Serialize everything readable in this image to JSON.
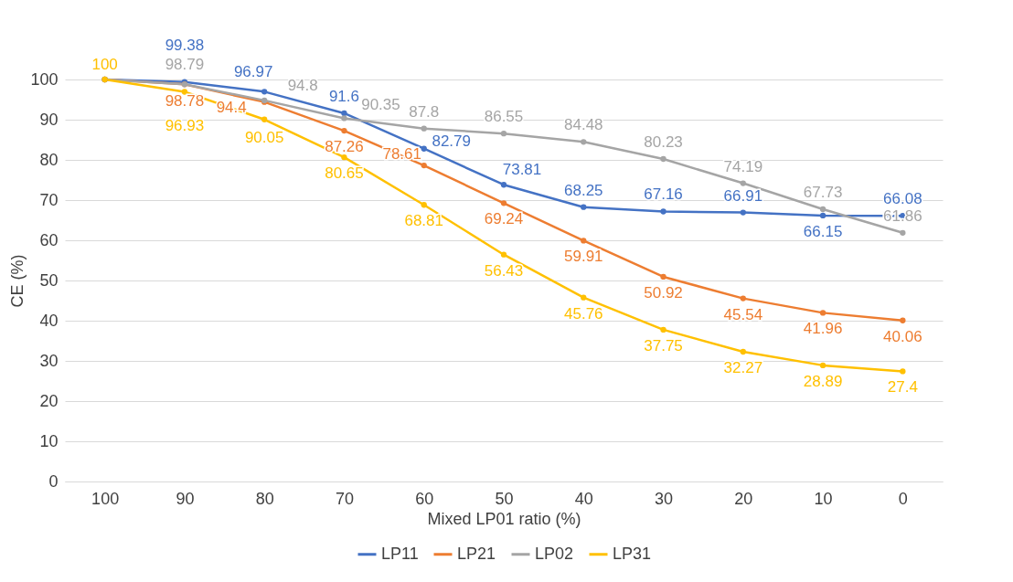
{
  "chart_data": {
    "type": "line",
    "xlabel": "Mixed LP01 ratio (%)",
    "ylabel": "CE (%)",
    "categories": [
      "100",
      "90",
      "80",
      "70",
      "60",
      "50",
      "40",
      "30",
      "20",
      "10",
      "0"
    ],
    "series": [
      {
        "name": "LP11",
        "color": "#4472c4",
        "values": [
          100,
          99.38,
          96.97,
          91.6,
          82.79,
          73.81,
          68.25,
          67.16,
          66.91,
          66.15,
          66.08
        ],
        "value_labels": [
          null,
          "99.38",
          "96.97",
          "91.6",
          "82.79",
          "73.81",
          "68.25",
          "67.16",
          "66.91",
          "66.15",
          "66.08"
        ]
      },
      {
        "name": "LP21",
        "color": "#ed7d31",
        "values": [
          100,
          98.78,
          94.4,
          87.26,
          78.61,
          69.24,
          59.91,
          50.92,
          45.54,
          41.96,
          40.06
        ],
        "value_labels": [
          null,
          "98.78",
          "94.4",
          "87.26",
          "78.61",
          "69.24",
          "59.91",
          "50.92",
          "45.54",
          "41.96",
          "40.06"
        ]
      },
      {
        "name": "LP02",
        "color": "#a5a5a5",
        "values": [
          100,
          98.79,
          94.8,
          90.35,
          87.8,
          86.55,
          84.48,
          80.23,
          74.19,
          67.73,
          61.86
        ],
        "value_labels": [
          null,
          "98.79",
          "94.8",
          "90.35",
          "87.8",
          "86.55",
          "84.48",
          "80.23",
          "74.19",
          "67.73",
          "61.86"
        ]
      },
      {
        "name": "LP31",
        "color": "#ffc000",
        "values": [
          100,
          96.93,
          90.05,
          80.65,
          68.81,
          56.43,
          45.76,
          37.75,
          32.27,
          28.89,
          27.4
        ],
        "value_labels": [
          "100",
          "96.93",
          "90.05",
          "80.65",
          "68.81",
          "56.43",
          "45.76",
          "37.75",
          "32.27",
          "28.89",
          "27.4"
        ]
      }
    ],
    "ylim": [
      0,
      100
    ],
    "yticks": [
      0,
      10,
      20,
      30,
      40,
      50,
      60,
      70,
      80,
      90,
      100
    ],
    "grid": "y",
    "legend": "bottom",
    "marker": "circle",
    "line_style": "solid"
  }
}
